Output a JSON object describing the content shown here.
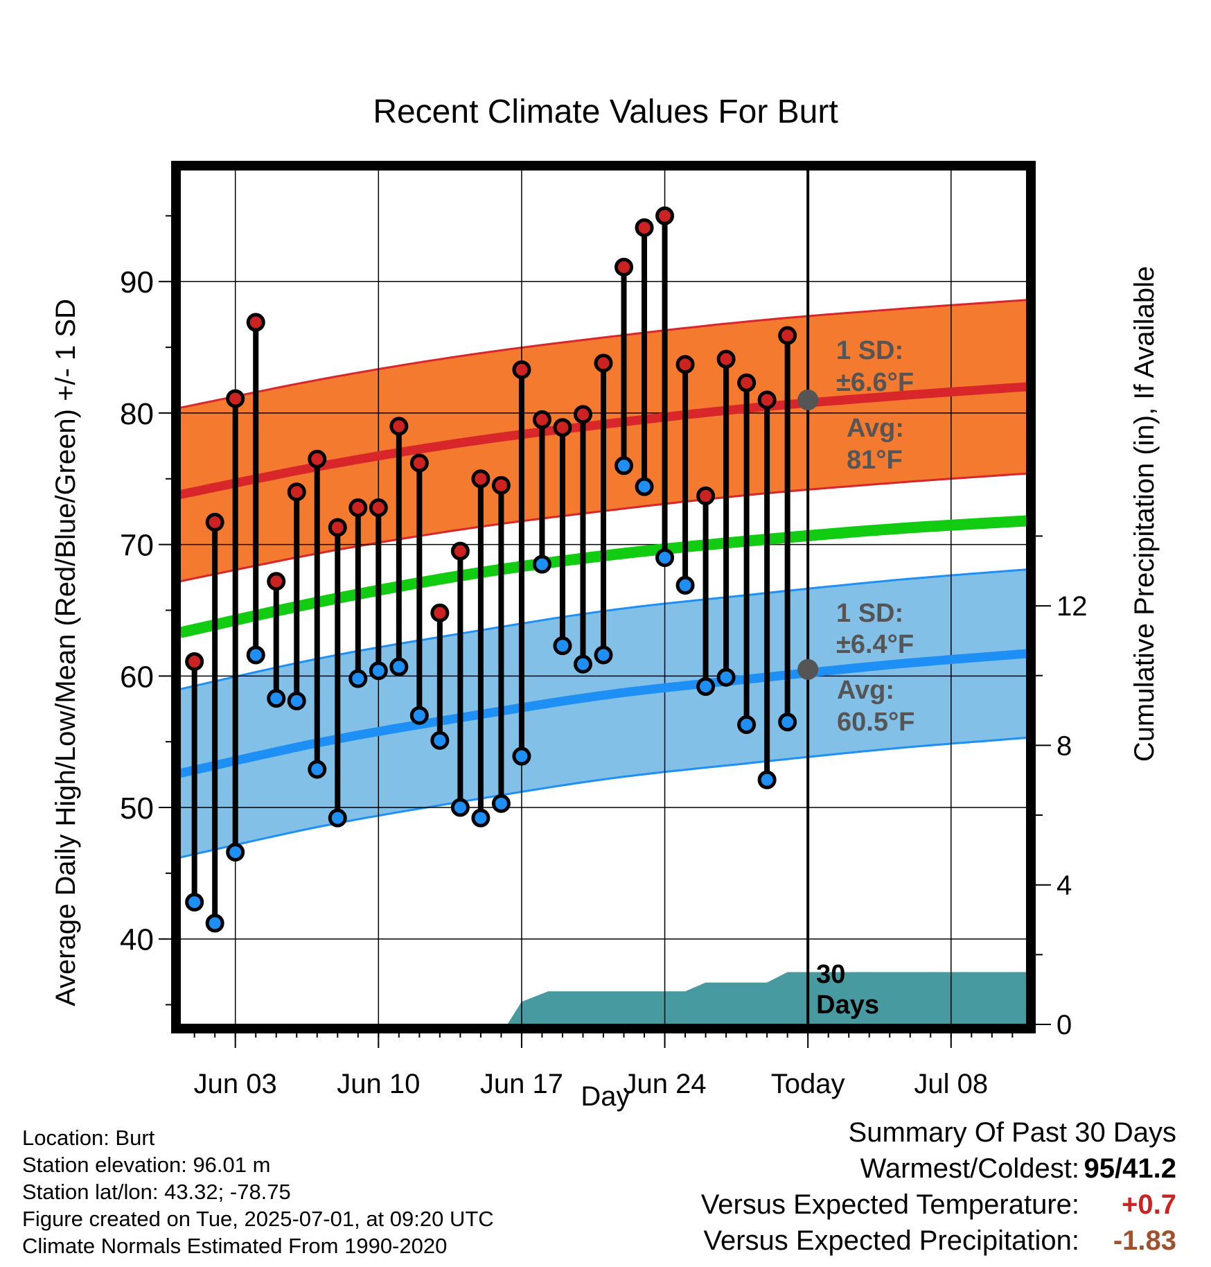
{
  "title": "Recent Climate Values For Burt",
  "xlabel": "Day",
  "ylabel_left": "Average Daily High/Low/Mean (Red/Blue/Green) +/- 1 SD",
  "ylabel_right": "Cumulative Precipitation (in), If Available",
  "colors": {
    "high_band": "#f47a2f",
    "high_mean_line": "#d8262a",
    "low_band": "#82c0e8",
    "low_mean_line": "#1e8ff5",
    "mean_line": "#11cc11",
    "high_point": "#cc2222",
    "low_point": "#1e8ff5",
    "precip_fill": "#469aa0",
    "annotation": "#555555",
    "positive_anomaly": "#cc2222",
    "negative_anomaly": "#a0522d"
  },
  "annotations": {
    "high_sd_line1": "1 SD:",
    "high_sd_line2": "±6.6°F",
    "high_avg_line1": "Avg:",
    "high_avg_line2": "81°F",
    "low_sd_line1": "1 SD:",
    "low_sd_line2": "±6.4°F",
    "low_avg_line1": "Avg:",
    "low_avg_line2": "60.5°F",
    "period_line1": "30",
    "period_line2": "Days"
  },
  "chart_data": {
    "type": "line",
    "title": "Recent Climate Values For Burt",
    "xlabel": "Day",
    "ylabel": "Average Daily High/Low/Mean (Red/Blue/Green) +/- 1 SD",
    "y2label": "Cumulative Precipitation (in), If Available",
    "x_range_days_from_jun01": [
      0.3,
      41.7
    ],
    "ylim": [
      33.5,
      98.5
    ],
    "y2lim": [
      0,
      24.5
    ],
    "yticks": [
      40,
      50,
      60,
      70,
      80,
      90
    ],
    "y2ticks": [
      0,
      4,
      8,
      12
    ],
    "grid": true,
    "today_marker": "Today",
    "x_tick_labels": [
      {
        "day": 3,
        "label": "Jun 03"
      },
      {
        "day": 10,
        "label": "Jun 10"
      },
      {
        "day": 17,
        "label": "Jun 17"
      },
      {
        "day": 24,
        "label": "Jun 24"
      },
      {
        "day": 31,
        "label": "Today"
      },
      {
        "day": 38,
        "label": "Jul 08"
      }
    ],
    "days": [
      "Jun 01",
      "Jun 02",
      "Jun 03",
      "Jun 04",
      "Jun 05",
      "Jun 06",
      "Jun 07",
      "Jun 08",
      "Jun 09",
      "Jun 10",
      "Jun 11",
      "Jun 12",
      "Jun 13",
      "Jun 14",
      "Jun 15",
      "Jun 16",
      "Jun 17",
      "Jun 18",
      "Jun 19",
      "Jun 20",
      "Jun 21",
      "Jun 22",
      "Jun 23",
      "Jun 24",
      "Jun 25",
      "Jun 26",
      "Jun 27",
      "Jun 28",
      "Jun 29",
      "Jun 30"
    ],
    "daily_high": [
      61.1,
      71.7,
      81.1,
      86.9,
      67.2,
      74.0,
      76.5,
      71.3,
      72.8,
      72.8,
      79.0,
      76.2,
      64.8,
      69.5,
      75.0,
      74.5,
      83.3,
      79.5,
      78.9,
      79.9,
      83.8,
      91.1,
      94.1,
      95.0,
      83.7,
      73.7,
      84.1,
      82.3,
      81.0,
      85.9
    ],
    "daily_low": [
      42.8,
      41.2,
      46.6,
      61.6,
      58.3,
      58.1,
      52.9,
      49.2,
      59.8,
      60.4,
      60.7,
      57.0,
      55.1,
      50.0,
      49.2,
      50.3,
      53.9,
      68.5,
      62.3,
      60.9,
      61.6,
      76.0,
      74.4,
      69.0,
      66.9,
      59.2,
      59.9,
      56.3,
      52.1,
      56.5
    ],
    "normal_curves": {
      "days": [
        0.3,
        7.3,
        14.3,
        21.3,
        28.3,
        35.3,
        41.7
      ],
      "high_mean": [
        73.8,
        76.0,
        77.8,
        79.2,
        80.4,
        81.3,
        82.0
      ],
      "high_sd": 6.6,
      "low_mean": [
        52.6,
        55.0,
        56.9,
        58.6,
        59.8,
        60.9,
        61.7
      ],
      "low_sd": 6.4,
      "daily_mean": [
        63.3,
        65.7,
        67.7,
        69.2,
        70.3,
        71.2,
        71.8
      ]
    },
    "normals_today": {
      "high_avg": 81,
      "low_avg": 60.5
    },
    "cumulative_precip": {
      "days": [
        16.3,
        17,
        18.3,
        19,
        20,
        21,
        22,
        23,
        24,
        25,
        26,
        27,
        28,
        29,
        30,
        31,
        41.7
      ],
      "inches": [
        0,
        0.65,
        0.95,
        0.95,
        0.95,
        0.95,
        0.95,
        0.95,
        0.95,
        0.95,
        1.2,
        1.2,
        1.2,
        1.2,
        1.5,
        1.5,
        1.5
      ]
    }
  },
  "meta": {
    "location": "Location: Burt",
    "elevation": "Station elevation: 96.01 m",
    "latlon": "Station lat/lon: 43.32; -78.75",
    "created": "Figure created on Tue, 2025-07-01, at 09:20 UTC",
    "normals": "Climate Normals Estimated From 1990-2020"
  },
  "summary": {
    "heading": "Summary Of Past 30 Days",
    "warmest_coldest_label": "Warmest/Coldest:",
    "warmest_coldest_value": "95/41.2",
    "temp_label": "Versus Expected Temperature:",
    "temp_value": "+0.7",
    "precip_label": "Versus Expected Precipitation:",
    "precip_value": "-1.83"
  }
}
